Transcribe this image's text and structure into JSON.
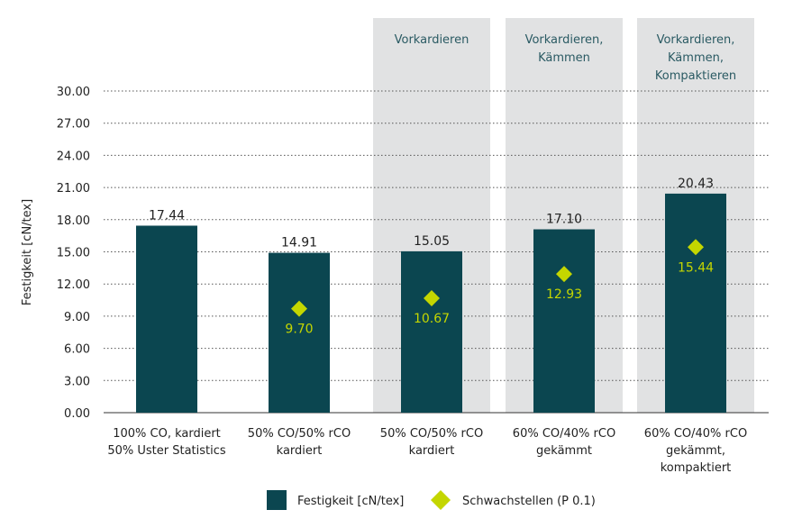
{
  "chart_data": {
    "type": "bar",
    "ylabel": "Festigkeit [cN/tex]",
    "ylim": [
      0,
      30
    ],
    "yticks": [
      "0.00",
      "3.00",
      "6.00",
      "9.00",
      "12.00",
      "15.00",
      "18.00",
      "21.00",
      "24.00",
      "27.00",
      "30.00"
    ],
    "grid": true,
    "legend_position": "bottom",
    "categories": [
      [
        "100% CO, kardiert",
        "50% Uster Statistics"
      ],
      [
        "50% CO/50% rCO",
        "kardiert"
      ],
      [
        "50% CO/50% rCO",
        "kardiert"
      ],
      [
        "60% CO/40% rCO",
        "gekämmt"
      ],
      [
        "60% CO/40% rCO",
        "gekämmt,",
        "kompaktiert"
      ]
    ],
    "process_bands": [
      null,
      null,
      [
        "Vorkardieren"
      ],
      [
        "Vorkardieren,",
        "Kämmen"
      ],
      [
        "Vorkardieren,",
        "Kämmen,",
        "Kompaktieren"
      ]
    ],
    "series": [
      {
        "name": "Festigkeit [cN/tex]",
        "type": "bar",
        "color": "#0b4650",
        "values": [
          17.44,
          14.91,
          15.05,
          17.1,
          20.43
        ],
        "labels": [
          "17.44",
          "14.91",
          "15.05",
          "17.10",
          "20.43"
        ]
      },
      {
        "name": "Schwachstellen (P 0.1)",
        "type": "scatter",
        "marker": "diamond",
        "color": "#c4d600",
        "values": [
          null,
          9.7,
          10.67,
          12.93,
          15.44
        ],
        "labels": [
          null,
          "9.70",
          "10.67",
          "12.93",
          "15.44"
        ]
      }
    ],
    "colors": {
      "band": "#e1e2e3",
      "band_text": "#2a5a63",
      "grid": "#555555"
    }
  }
}
